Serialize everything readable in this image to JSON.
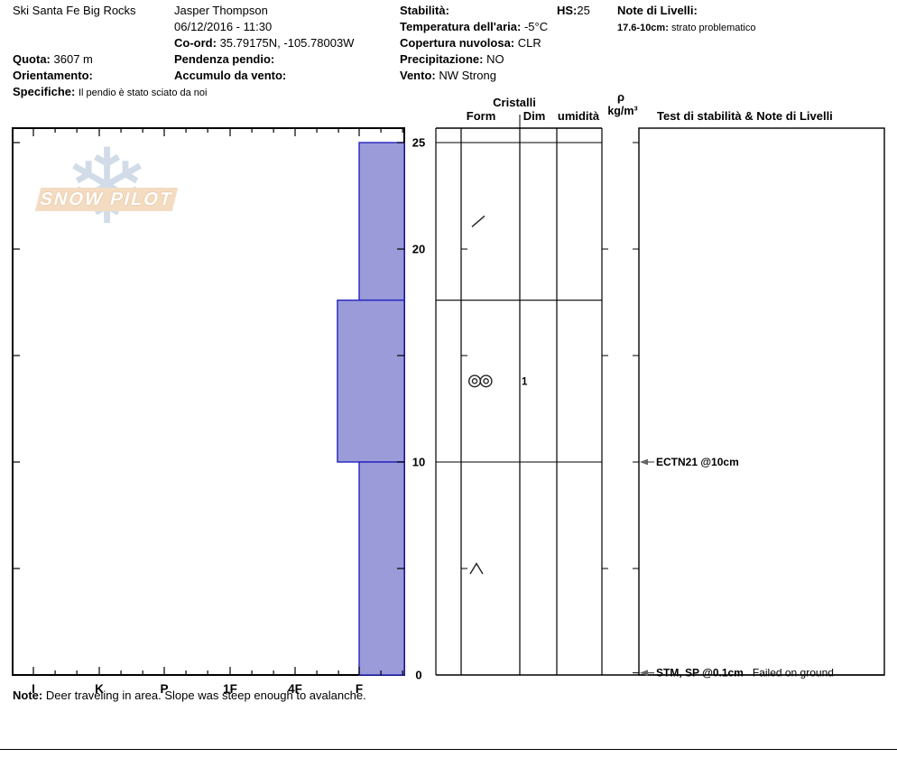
{
  "header": {
    "site": "Ski Santa Fe Big Rocks",
    "observer": "Jasper Thompson",
    "datetime": "06/12/2016 - 11:30",
    "coord_label": "Co-ord:",
    "coord": "35.79175N, -105.78003W",
    "quota_label": "Quota:",
    "quota": "3607 m",
    "orientamento_label": "Orientamento:",
    "orientamento": "",
    "pendenza_label": "Pendenza pendio:",
    "pendenza": "",
    "accumulo_label": "Accumulo da vento:",
    "accumulo": "",
    "specifiche_label": "Specifiche:",
    "specifiche": "Il pendio è stato sciato da noi",
    "stabilita_label": "Stabilità:",
    "stabilita": "",
    "hs_label": "HS:",
    "hs": "25",
    "temp_label": "Temperatura dell'aria:",
    "temp": "-5°C",
    "copertura_label": "Copertura nuvolosa:",
    "copertura": "CLR",
    "precipitazione_label": "Precipitazione:",
    "precipitazione": "NO",
    "vento_label": "Vento:",
    "vento": "NW Strong",
    "note_livelli_label": "Note di Livelli:",
    "note_livelli_range": "17.6-10cm:",
    "note_livelli_text": "strato problematico"
  },
  "columns": {
    "cristalli": "Cristalli",
    "form": "Form",
    "dim": "Dim",
    "umidita": "umidità",
    "rho": "ρ",
    "rho_units": "kg/m³",
    "tests_header": "Test di stabilità & Note di Livelli"
  },
  "footer": {
    "note_label": "Note:",
    "note": "Deer traveling in area. Slope was steep enough to avalanche."
  },
  "watermark": {
    "text": "SNOW PILOT"
  },
  "chart_data": {
    "type": "bar",
    "subtype": "snow-profile-hardness",
    "depth_unit": "cm",
    "depth_max": 25,
    "depth_tick_interval": 5,
    "depth_labels": [
      25,
      20,
      10,
      0
    ],
    "hardness_categories": [
      "I",
      "K",
      "P",
      "1F",
      "4F",
      "F"
    ],
    "bar_fill": "#9b9bd9",
    "bar_stroke": "#2424c0",
    "layers": [
      {
        "top_cm": 25,
        "bottom_cm": 17.6,
        "hardness": "F",
        "grain_symbol": "slash",
        "grain_size_mm": "",
        "moisture": ""
      },
      {
        "top_cm": 17.6,
        "bottom_cm": 10,
        "hardness": "F+",
        "grain_symbol": "double-circle",
        "grain_size_mm": "1",
        "moisture": ""
      },
      {
        "top_cm": 10,
        "bottom_cm": 0,
        "hardness": "F",
        "grain_symbol": "chevron",
        "grain_size_mm": "",
        "moisture": ""
      }
    ],
    "tests": [
      {
        "depth_cm": 10,
        "bold": "ECTN21 @10cm",
        "rest": ""
      },
      {
        "depth_cm": 0.1,
        "bold": "STM, SP @0.1cm",
        "rest": "Failed on ground"
      }
    ]
  }
}
